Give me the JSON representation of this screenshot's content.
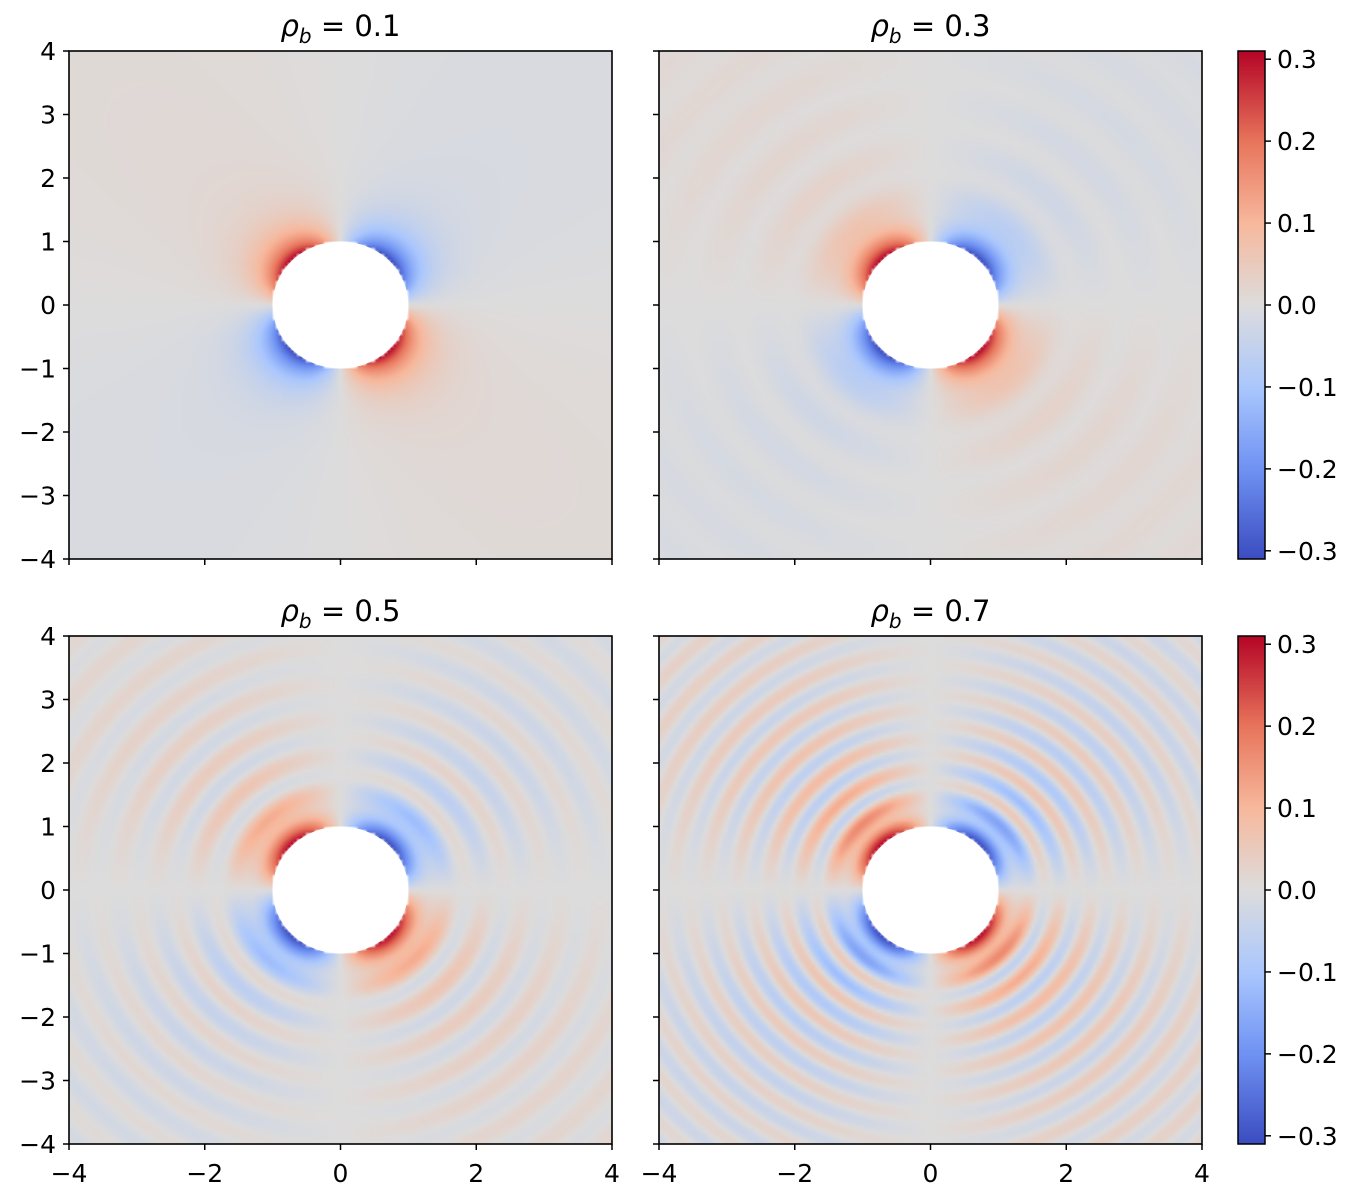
{
  "chart_data": [
    {
      "type": "heatmap",
      "title": {
        "var": "ρ",
        "sub": "b",
        "rest": " = 0.1"
      },
      "rho_b": 0.1,
      "xlim": [
        -4,
        4
      ],
      "ylim": [
        -4,
        4
      ],
      "xticks": [
        "−4",
        "−2",
        "0",
        "2",
        "4"
      ],
      "yticks": [
        "4",
        "3",
        "2",
        "1",
        "0",
        "−1",
        "−2",
        "−3",
        "−4"
      ],
      "show_xticklabels": false,
      "show_yticklabels": true,
      "hole_radius": 1.0,
      "rings": 0,
      "far_field": 0.015,
      "wave_amp": 0,
      "lobes": [
        {
          "quadrant": "upper-left",
          "sign": 1,
          "peak": 0.3
        },
        {
          "quadrant": "upper-right",
          "sign": -1,
          "peak": -0.3
        },
        {
          "quadrant": "lower-left",
          "sign": -1,
          "peak": -0.3
        },
        {
          "quadrant": "lower-right",
          "sign": 1,
          "peak": 0.3
        }
      ]
    },
    {
      "type": "heatmap",
      "title": {
        "var": "ρ",
        "sub": "b",
        "rest": " = 0.3"
      },
      "rho_b": 0.3,
      "xlim": [
        -4,
        4
      ],
      "ylim": [
        -4,
        4
      ],
      "xticks": [
        "−4",
        "−2",
        "0",
        "2",
        "4"
      ],
      "yticks": [
        "4",
        "3",
        "2",
        "1",
        "0",
        "−1",
        "−2",
        "−3",
        "−4"
      ],
      "show_xticklabels": false,
      "show_yticklabels": false,
      "hole_radius": 1.0,
      "rings": 1,
      "far_field": 0.015,
      "wave_amp": 0.02,
      "lobes": [
        {
          "quadrant": "upper-left",
          "sign": 1,
          "peak": 0.3
        },
        {
          "quadrant": "upper-right",
          "sign": -1,
          "peak": -0.3
        },
        {
          "quadrant": "lower-left",
          "sign": -1,
          "peak": -0.3
        },
        {
          "quadrant": "lower-right",
          "sign": 1,
          "peak": 0.3
        }
      ]
    },
    {
      "type": "heatmap",
      "title": {
        "var": "ρ",
        "sub": "b",
        "rest": " = 0.5"
      },
      "rho_b": 0.5,
      "xlim": [
        -4,
        4
      ],
      "ylim": [
        -4,
        4
      ],
      "xticks": [
        "−4",
        "−2",
        "0",
        "2",
        "4"
      ],
      "yticks": [
        "4",
        "3",
        "2",
        "1",
        "0",
        "−1",
        "−2",
        "−3",
        "−4"
      ],
      "show_xticklabels": true,
      "show_yticklabels": true,
      "hole_radius": 1.0,
      "rings": 2,
      "far_field": 0.01,
      "wave_amp": 0.07,
      "lobes": [
        {
          "quadrant": "upper-left",
          "sign": 1,
          "peak": 0.3
        },
        {
          "quadrant": "upper-right",
          "sign": -1,
          "peak": -0.3
        },
        {
          "quadrant": "lower-left",
          "sign": -1,
          "peak": -0.3
        },
        {
          "quadrant": "lower-right",
          "sign": 1,
          "peak": 0.3
        }
      ]
    },
    {
      "type": "heatmap",
      "title": {
        "var": "ρ",
        "sub": "b",
        "rest": " = 0.7"
      },
      "rho_b": 0.7,
      "xlim": [
        -4,
        4
      ],
      "ylim": [
        -4,
        4
      ],
      "xticks": [
        "−4",
        "−2",
        "0",
        "2",
        "4"
      ],
      "yticks": [
        "4",
        "3",
        "2",
        "1",
        "0",
        "−1",
        "−2",
        "−3",
        "−4"
      ],
      "show_xticklabels": true,
      "show_yticklabels": false,
      "hole_radius": 1.0,
      "rings": 4,
      "far_field": 0.01,
      "wave_amp": 0.13,
      "lobes": [
        {
          "quadrant": "upper-left",
          "sign": 1,
          "peak": 0.3
        },
        {
          "quadrant": "upper-right",
          "sign": -1,
          "peak": -0.3
        },
        {
          "quadrant": "lower-left",
          "sign": -1,
          "peak": -0.3
        },
        {
          "quadrant": "lower-right",
          "sign": 1,
          "peak": 0.3
        }
      ]
    }
  ],
  "colorbar": {
    "cmap": "coolwarm",
    "range": [
      -0.31,
      0.31
    ],
    "ticks": [
      {
        "value": 0.3,
        "label": "0.3"
      },
      {
        "value": 0.2,
        "label": "0.2"
      },
      {
        "value": 0.1,
        "label": "0.1"
      },
      {
        "value": 0.0,
        "label": "0.0"
      },
      {
        "value": -0.1,
        "label": "−0.1"
      },
      {
        "value": -0.2,
        "label": "−0.2"
      },
      {
        "value": -0.3,
        "label": "−0.3"
      }
    ],
    "stops": [
      {
        "v": -0.31,
        "color": "#3b4cc0"
      },
      {
        "v": -0.2,
        "color": "#6f92f3"
      },
      {
        "v": -0.1,
        "color": "#aac7fd"
      },
      {
        "v": 0.0,
        "color": "#dddcdc"
      },
      {
        "v": 0.1,
        "color": "#f7b89c"
      },
      {
        "v": 0.2,
        "color": "#e7745b"
      },
      {
        "v": 0.31,
        "color": "#b40426"
      }
    ]
  }
}
